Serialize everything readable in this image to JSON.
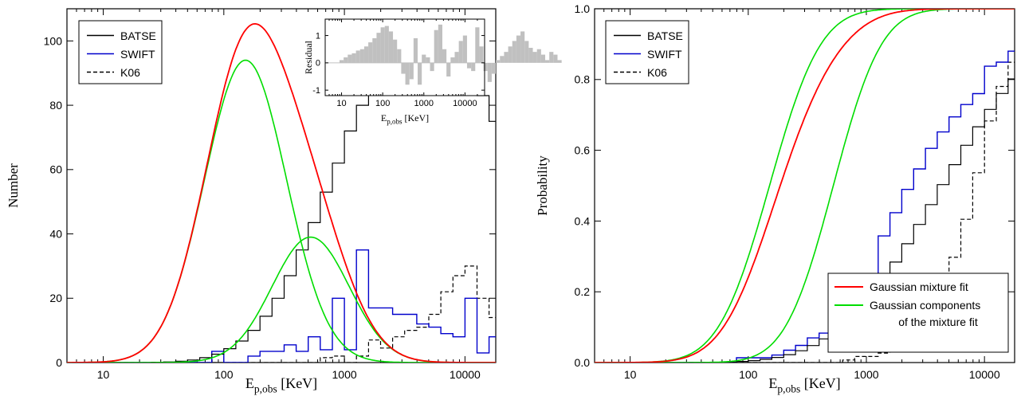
{
  "colors": {
    "batse": "#000000",
    "swift": "#0000cc",
    "k06": "#000000",
    "mixture_fit": "#ff0000",
    "components": "#00dd00",
    "residual_bars": "#c0c0c0"
  },
  "chart_data": [
    {
      "type": "line",
      "ylabel": "Number",
      "xlabel_main": "E",
      "xlabel_sub": "p,obs",
      "xlabel_unit": "[KeV]",
      "x_scale": "log",
      "xlim": [
        5,
        18000
      ],
      "ylim": [
        0,
        110
      ],
      "xticks": [
        10,
        100,
        1000,
        10000
      ],
      "xtick_labels": [
        "10",
        "100",
        "1000",
        "10000"
      ],
      "yticks": [
        0,
        20,
        40,
        60,
        80,
        100
      ],
      "ytick_labels": [
        "0",
        "20",
        "40",
        "60",
        "80",
        "100"
      ],
      "legend": {
        "position": "top-left",
        "entries": [
          "BATSE",
          "SWIFT",
          "K06"
        ]
      },
      "histogram_bins": {
        "log10_start": 0.8,
        "log10_width": 0.1
      },
      "series": [
        {
          "name": "BATSE",
          "style": "step",
          "values": [
            0,
            0,
            0,
            0,
            0,
            0,
            0.1,
            0.2,
            0.4,
            0.8,
            1.5,
            2.6,
            4.3,
            6.7,
            10,
            14.4,
            20,
            27,
            35,
            43.5,
            53,
            62,
            72,
            80,
            88,
            95,
            100,
            103,
            104,
            103.5,
            100.5,
            96,
            90,
            83,
            75,
            66.5,
            58,
            50,
            42,
            35,
            28.5,
            22.5,
            17.5,
            13,
            9.5,
            7,
            5,
            3.4,
            2.3,
            1.5,
            1,
            0.6,
            0.4,
            0.3,
            0.2,
            0.1,
            0.1,
            0,
            0,
            0,
            0,
            0,
            0,
            0,
            0,
            0
          ]
        },
        {
          "name": "SWIFT",
          "style": "step",
          "values": [
            0,
            0,
            0,
            0,
            0,
            0,
            0,
            0,
            0,
            0,
            0,
            3.5,
            0,
            0,
            2,
            3.5,
            3.5,
            5.5,
            3.5,
            8,
            4,
            20,
            4,
            35,
            17,
            17,
            15,
            15,
            12,
            11,
            9,
            8,
            20,
            3,
            8,
            10,
            8,
            6,
            1,
            0,
            0,
            0,
            0,
            1,
            2,
            2,
            1,
            0,
            0,
            0,
            0,
            0,
            0,
            0,
            0,
            0,
            0,
            0,
            0,
            0,
            0,
            0,
            0,
            0,
            0,
            0
          ]
        },
        {
          "name": "K06",
          "style": "step-dashed",
          "values": [
            0,
            0,
            0,
            0,
            0,
            0,
            0,
            0,
            0,
            0,
            0,
            0,
            0,
            0,
            0,
            0,
            0,
            0,
            0,
            0,
            1.5,
            2,
            0,
            2,
            7,
            4.5,
            8,
            10,
            11,
            15,
            22,
            27,
            30,
            20,
            14,
            10,
            5,
            3,
            2,
            3,
            2,
            1.5,
            2,
            1,
            1.5,
            0,
            0,
            0,
            0,
            0,
            0,
            0,
            0,
            0,
            0,
            0,
            0,
            0,
            0,
            0,
            0,
            0,
            0,
            0,
            0,
            0
          ]
        }
      ],
      "model": {
        "mixture_fit": {
          "weights": [
            0.8,
            0.2
          ],
          "log10_means": [
            2.18,
            2.72
          ],
          "log10_sigmas": [
            0.34,
            0.32
          ]
        },
        "component_peaks": [
          94,
          39
        ],
        "mixture_peak": 104
      },
      "inset": {
        "type": "bar",
        "ylabel": "Residual",
        "xlabel_main": "E",
        "xlabel_sub": "p,obs",
        "xlabel_unit": "[KeV]",
        "x_scale": "log",
        "xlim": [
          4,
          30000
        ],
        "ylim": [
          -1.2,
          1.6
        ],
        "xticks": [
          10,
          100,
          1000,
          10000
        ],
        "xtick_labels": [
          "10",
          "100",
          "1000",
          "10000"
        ],
        "yticks": [
          -1,
          0,
          1
        ],
        "ytick_labels": [
          "-1",
          "0",
          "1"
        ],
        "bin_log10_start": 0.95,
        "bin_log10_width": 0.1,
        "values": [
          0.1,
          0.2,
          0.3,
          0.35,
          0.45,
          0.5,
          0.6,
          0.75,
          0.9,
          1.1,
          1.3,
          1.35,
          1.15,
          0.85,
          0.5,
          -0.4,
          -0.8,
          -0.6,
          0.9,
          -0.8,
          0.3,
          0.2,
          -0.3,
          1.2,
          1.4,
          0.5,
          -0.5,
          0.2,
          0.4,
          0.8,
          1.0,
          -0.2,
          -0.3,
          1.3,
          0.6,
          -0.3,
          -0.7,
          -0.4,
          0.1,
          0.25,
          0.4,
          0.6,
          0.8,
          1.0,
          1.15,
          0.8,
          0.55,
          0.4,
          0.5,
          0.3,
          0.1,
          0.4,
          0.3,
          0.1
        ]
      }
    },
    {
      "type": "line",
      "ylabel": "Probability",
      "xlabel_main": "E",
      "xlabel_sub": "p,obs",
      "xlabel_unit": "[KeV]",
      "x_scale": "log",
      "xlim": [
        5,
        18000
      ],
      "ylim": [
        0,
        1
      ],
      "xticks": [
        10,
        100,
        1000,
        10000
      ],
      "xtick_labels": [
        "10",
        "100",
        "1000",
        "10000"
      ],
      "yticks": [
        0,
        0.2,
        0.4,
        0.6,
        0.8,
        1.0
      ],
      "ytick_labels": [
        "0.0",
        "0.2",
        "0.4",
        "0.6",
        "0.8",
        "1.0"
      ],
      "legend": {
        "position": "top-left",
        "entries": [
          "BATSE",
          "SWIFT",
          "K06"
        ]
      },
      "legend2": {
        "position": "bottom-right",
        "entries": [
          "Gaussian mixture fit",
          "Gaussian components",
          "of the mixture fit"
        ]
      },
      "cdf_from": "left chart histograms and model"
    }
  ]
}
